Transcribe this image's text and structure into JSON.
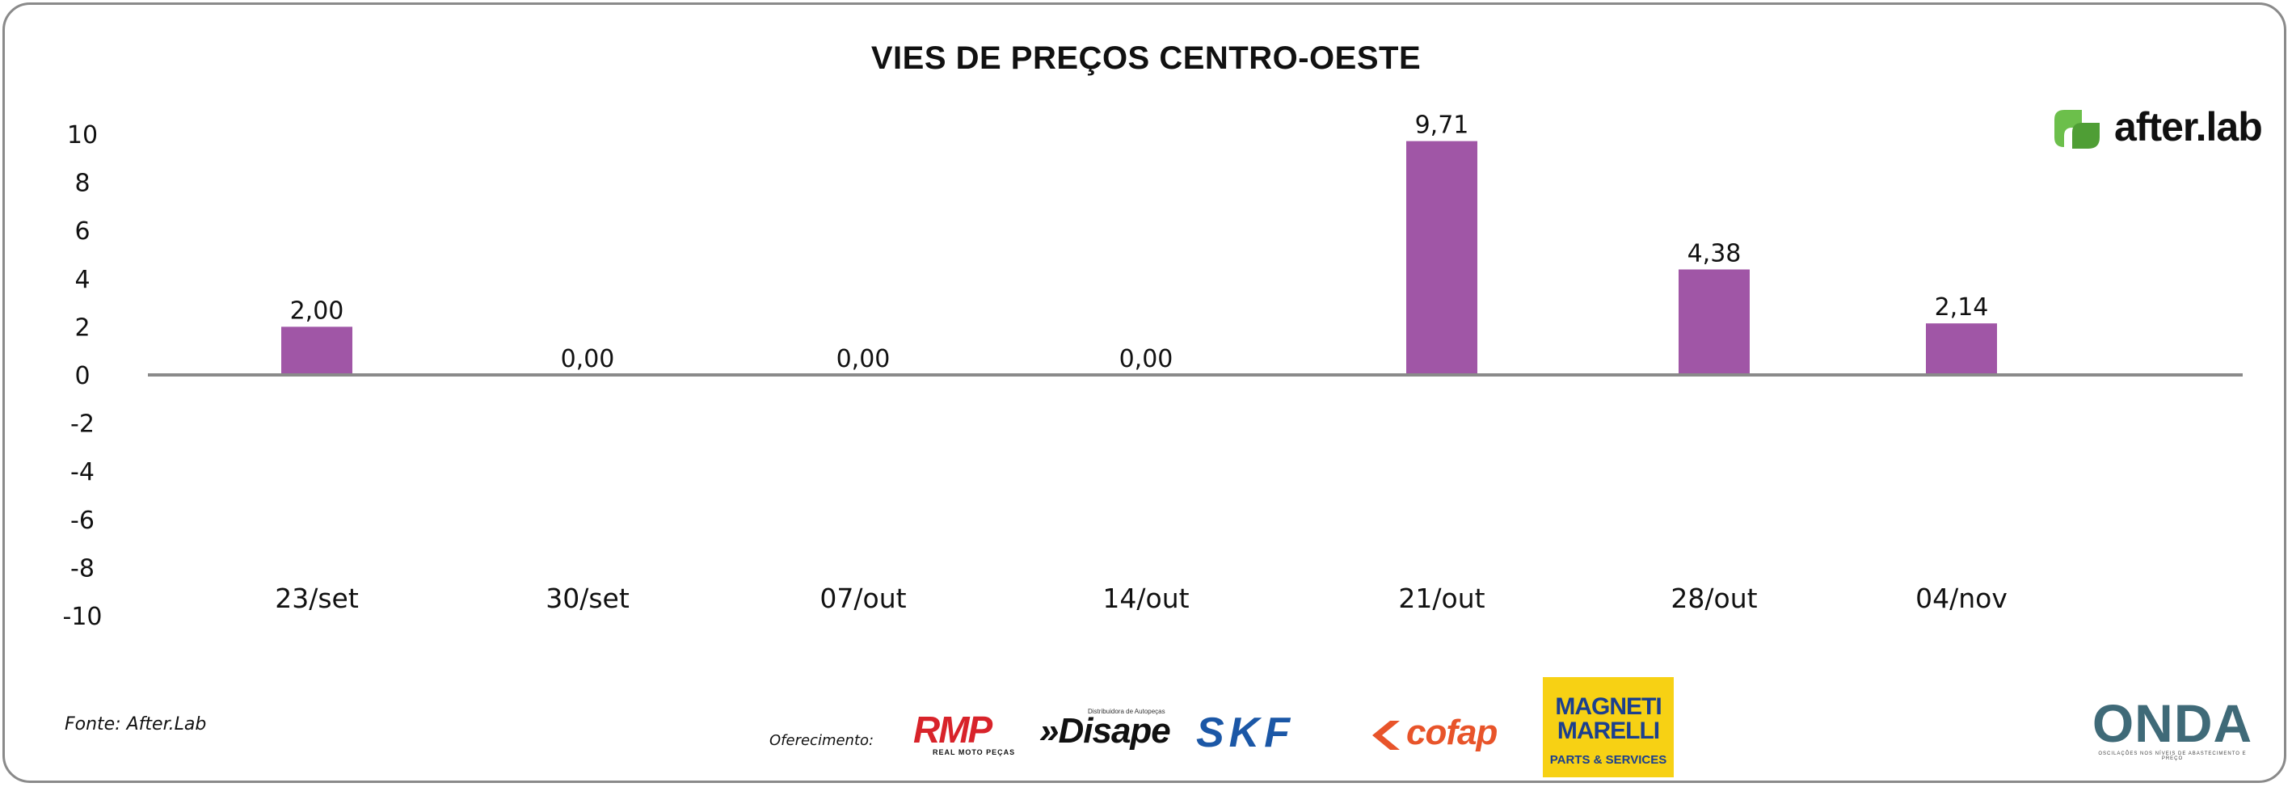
{
  "chart_data": {
    "type": "bar",
    "title": "VIES DE PREÇOS CENTRO-OESTE",
    "categories": [
      "23/set",
      "30/set",
      "07/out",
      "14/out",
      "21/out",
      "28/out",
      "04/nov"
    ],
    "values": [
      2.0,
      0.0,
      0.0,
      0.0,
      9.71,
      4.38,
      2.14
    ],
    "value_labels": [
      "2,00",
      "0,00",
      "0,00",
      "0,00",
      "9,71",
      "4,38",
      "2,14"
    ],
    "ylim": [
      -10,
      10
    ],
    "yticks": [
      10,
      8,
      6,
      4,
      2,
      0,
      -2,
      -4,
      -6,
      -8,
      -10
    ],
    "grid": false,
    "legend": "none",
    "bar_color": "#a056a6",
    "axis_color": "#8a8a8a"
  },
  "footer": {
    "source": "Fonte: After.Lab",
    "sponsor_label": "Oferecimento:"
  },
  "logos": {
    "afterlab": {
      "icon": "afterlab-leaf-icon",
      "text": "after.lab",
      "color": "#6cbf4b"
    },
    "rmp": {
      "text": "RMP",
      "sub": "REAL MOTO PEÇAS",
      "color": "#d8232a"
    },
    "disape": {
      "text": "»Disape",
      "tagline": "Distribuidora de Autopeças"
    },
    "skf": {
      "text": "SKF",
      "color": "#1b57a6"
    },
    "cofap": {
      "text": "cofap",
      "color": "#e8542a"
    },
    "magneti_marelli": {
      "line1": "MAGNETI",
      "line2": "MARELLI",
      "line3": "PARTS & SERVICES",
      "bg": "#f7d114"
    },
    "onda": {
      "text": "ONDA",
      "sub": "OSCILAÇÕES NOS NÍVEIS DE ABASTECIMENTO E PREÇO"
    }
  }
}
